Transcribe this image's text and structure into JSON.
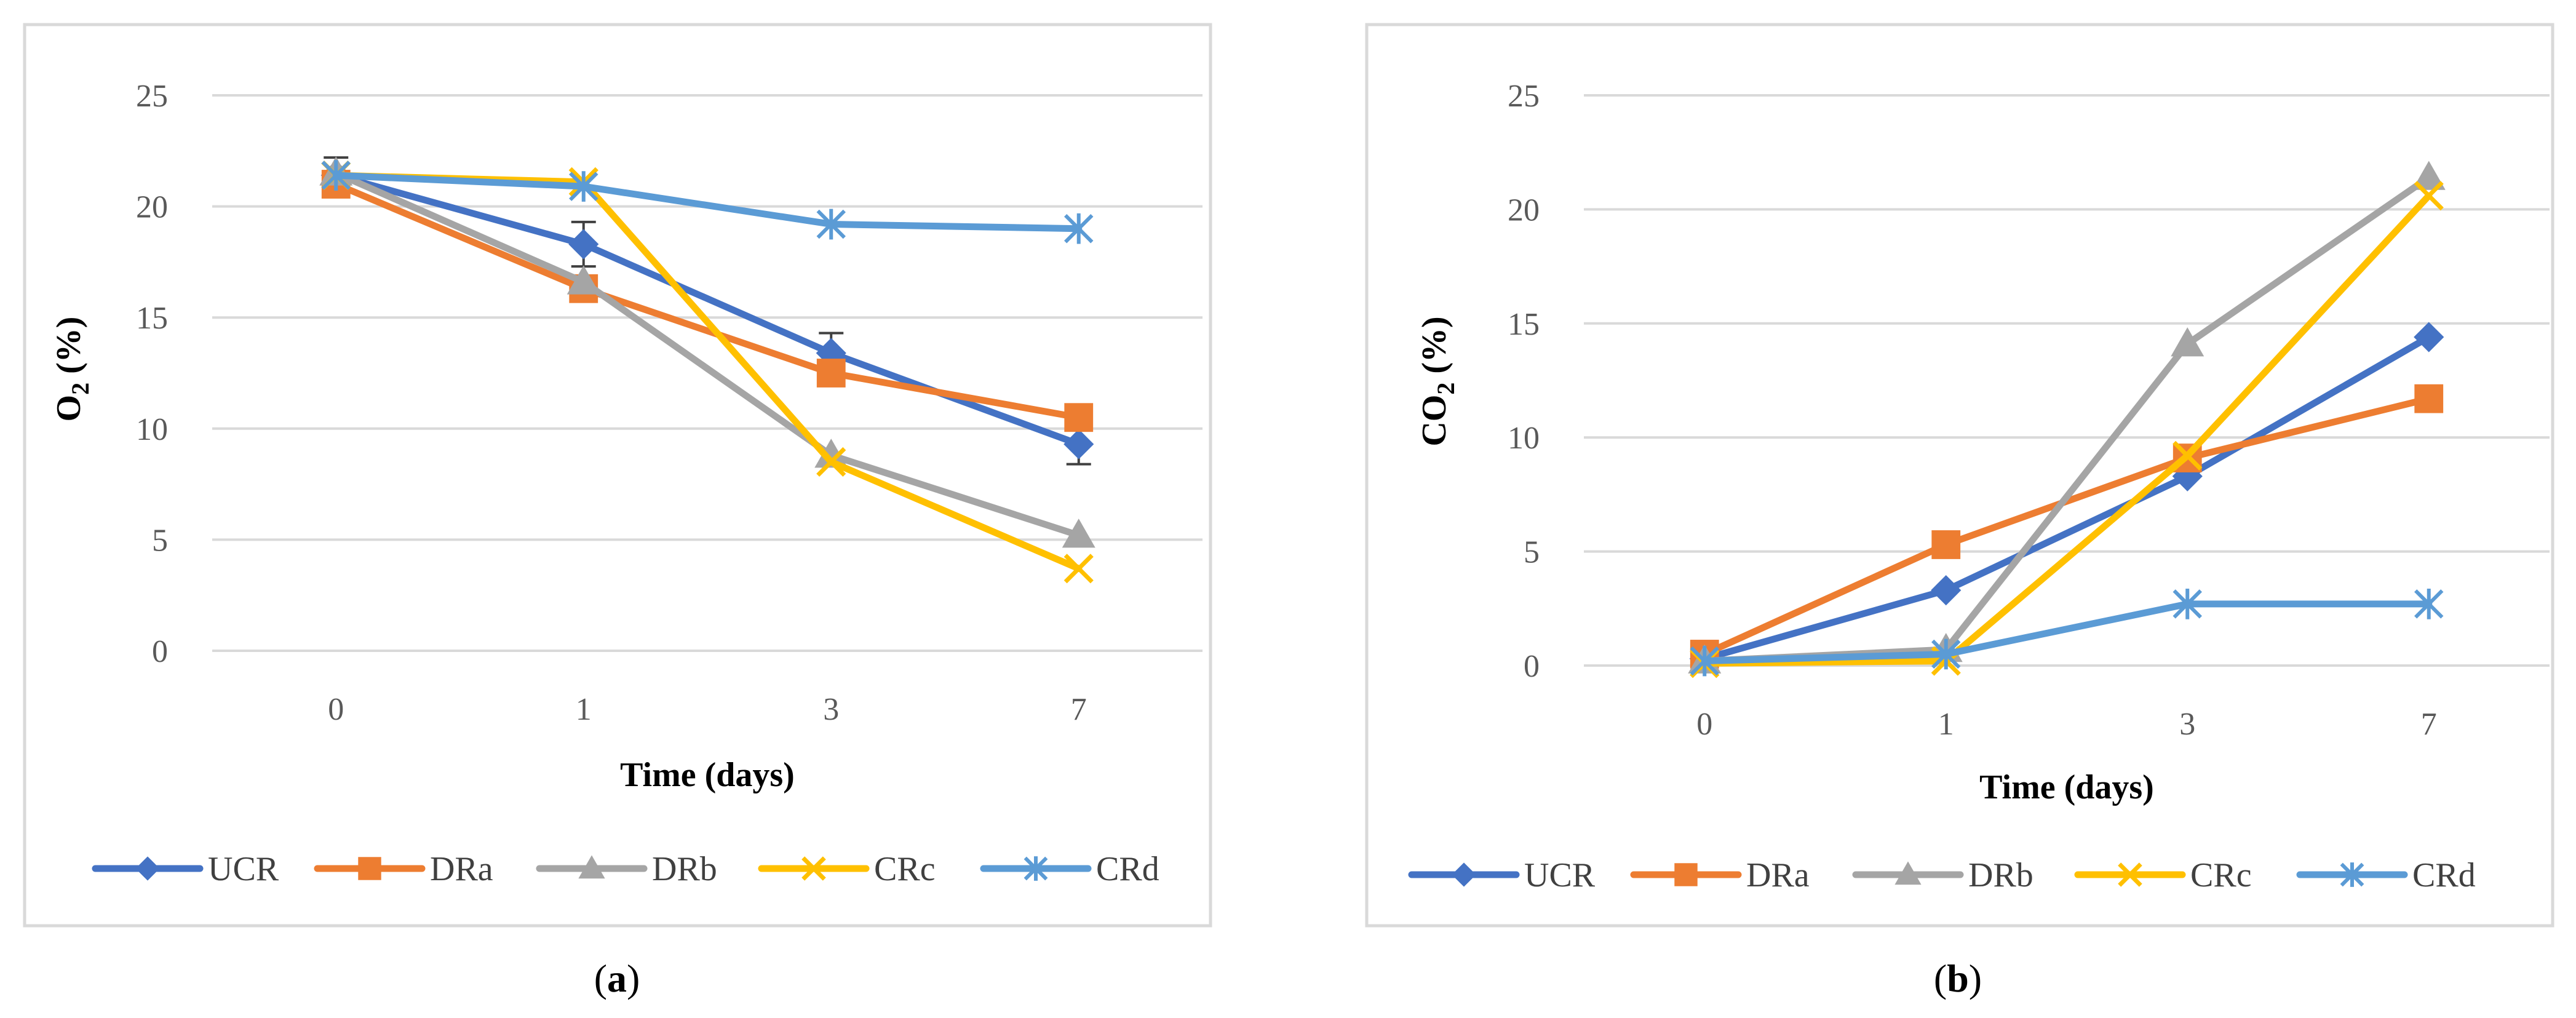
{
  "colors": {
    "UCR": "#4472C4",
    "DRa": "#ED7D31",
    "DRb": "#A5A5A5",
    "CRc": "#FFC000",
    "CRd": "#5B9BD5",
    "grid": "#D9D9D9",
    "frame": "#D9D9D9",
    "errorbar": "#404040"
  },
  "chart_data": [
    {
      "type": "line",
      "panel": "a",
      "panel_label": {
        "open": "(",
        "letter": "a",
        "close": ")"
      },
      "title": "",
      "ylabel_main": "O",
      "ylabel_sub": "2",
      "ylabel_tail": " (%)",
      "xlabel": "Time (days)",
      "categories": [
        "0",
        "1",
        "3",
        "7"
      ],
      "ylim": [
        0,
        25
      ],
      "yticks": [
        0,
        5,
        10,
        15,
        20,
        25
      ],
      "grid": true,
      "legend": "bottom",
      "series": [
        {
          "name": "UCR",
          "marker": "diamond",
          "values": [
            21.4,
            18.3,
            13.4,
            9.3
          ],
          "errors": [
            0.8,
            1.0,
            0.9,
            0.9
          ]
        },
        {
          "name": "DRa",
          "marker": "square",
          "values": [
            21.0,
            16.3,
            12.5,
            10.5
          ]
        },
        {
          "name": "DRb",
          "marker": "triangle",
          "values": [
            21.5,
            16.6,
            8.8,
            5.2
          ]
        },
        {
          "name": "CRc",
          "marker": "x",
          "values": [
            21.4,
            21.1,
            8.5,
            3.7
          ]
        },
        {
          "name": "CRd",
          "marker": "star",
          "values": [
            21.4,
            20.9,
            19.2,
            19.0
          ]
        }
      ]
    },
    {
      "type": "line",
      "panel": "b",
      "panel_label": {
        "open": "(",
        "letter": "b",
        "close": ")"
      },
      "title": "",
      "ylabel_main": "CO",
      "ylabel_sub": "2",
      "ylabel_tail": " (%)",
      "xlabel": "Time (days)",
      "categories": [
        "0",
        "1",
        "3",
        "7"
      ],
      "ylim": [
        0,
        25
      ],
      "yticks": [
        0,
        5,
        10,
        15,
        20,
        25
      ],
      "grid": true,
      "legend": "bottom",
      "series": [
        {
          "name": "UCR",
          "marker": "diamond",
          "values": [
            0.3,
            3.3,
            8.3,
            14.4
          ]
        },
        {
          "name": "DRa",
          "marker": "square",
          "values": [
            0.5,
            5.3,
            9.1,
            11.7
          ]
        },
        {
          "name": "DRb",
          "marker": "triangle",
          "values": [
            0.2,
            0.7,
            14.1,
            21.4
          ]
        },
        {
          "name": "CRc",
          "marker": "x",
          "values": [
            0.1,
            0.2,
            9.2,
            20.6
          ]
        },
        {
          "name": "CRd",
          "marker": "star",
          "values": [
            0.2,
            0.5,
            2.7,
            2.7
          ]
        }
      ]
    }
  ]
}
